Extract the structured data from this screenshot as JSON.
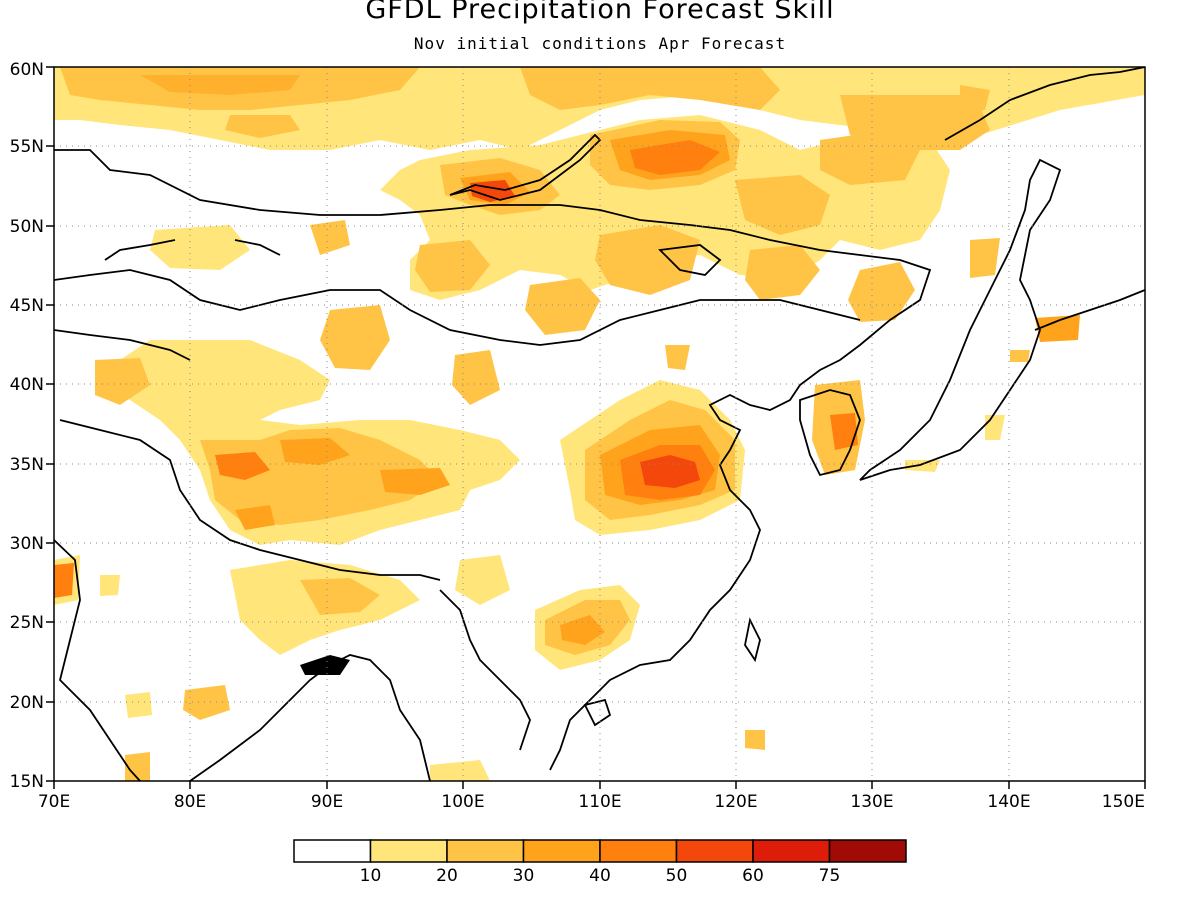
{
  "title": "GFDL Precipitation Forecast Skill",
  "subtitle": "Nov initial conditions  Apr Forecast",
  "map": {
    "lon_range": [
      70,
      150
    ],
    "lat_range": [
      15,
      60
    ],
    "x_tick_labels": [
      "70E",
      "80E",
      "90E",
      "100E",
      "110E",
      "120E",
      "130E",
      "140E",
      "150E"
    ],
    "y_tick_labels": [
      "15N",
      "20N",
      "25N",
      "30N",
      "35N",
      "40N",
      "45N",
      "50N",
      "55N",
      "60N"
    ],
    "gridlines": "dotted"
  },
  "colorbar": {
    "colors": [
      "#ffffff",
      "#ffe57a",
      "#ffc446",
      "#ffa31d",
      "#ff7f0f",
      "#f3470c",
      "#dd1c0a",
      "#a10a05"
    ],
    "labels": [
      "10",
      "20",
      "30",
      "40",
      "50",
      "60",
      "75"
    ]
  },
  "skill_regions": [
    {
      "level": 1,
      "lon": [
        70,
        150
      ],
      "lat": [
        56,
        60
      ],
      "note": "northern band"
    },
    {
      "level": 2,
      "lon": [
        112,
        120
      ],
      "lat": [
        52,
        56
      ]
    },
    {
      "level": 4,
      "lon": [
        112,
        118
      ],
      "lat": [
        53,
        55.5
      ]
    },
    {
      "level": 4,
      "lon": [
        100,
        104
      ],
      "lat": [
        51,
        53
      ]
    },
    {
      "level": 2,
      "lon": [
        110,
        122
      ],
      "lat": [
        31,
        38
      ]
    },
    {
      "level": 4,
      "lon": [
        113,
        119
      ],
      "lat": [
        33,
        36
      ]
    },
    {
      "level": 2,
      "lon": [
        82,
        100
      ],
      "lat": [
        32,
        37
      ]
    },
    {
      "level": 2,
      "lon": [
        106,
        112
      ],
      "lat": [
        22,
        27
      ]
    },
    {
      "level": 4,
      "lon": [
        127,
        128
      ],
      "lat": [
        34,
        37
      ]
    },
    {
      "level": 3,
      "lon": [
        70,
        71.5
      ],
      "lat": [
        26,
        28
      ]
    }
  ]
}
